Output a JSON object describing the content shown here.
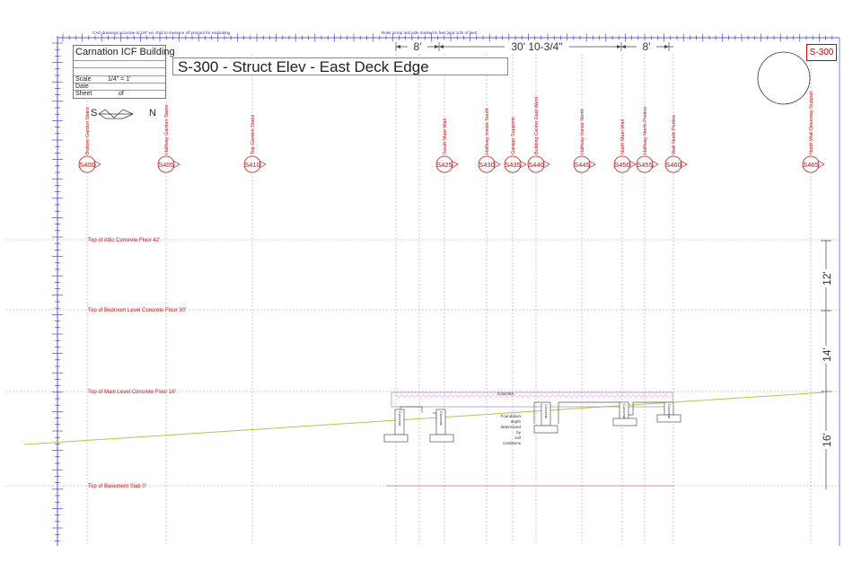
{
  "cad_notes": {
    "top_left": "CAD drawings accurate to 1/8\" ea. Grid to measure off printout for estimating",
    "top_center": "Ruler at top and side marked in feet (and 1/3s of feet)"
  },
  "title_block": {
    "building_name": "Carnation ICF Building",
    "scale_label": "Scale",
    "scale_value": "1/4\"  =  1'",
    "date_label": "Date",
    "sheet_label": "Sheet",
    "sheet_of": "of"
  },
  "drawing_title": "S-300 - Struct Elev - East Deck Edge",
  "sheet_id": "S-300",
  "compass": {
    "left": "S",
    "right": "N"
  },
  "dimensions": {
    "d1": "8'",
    "d2": "30' 10-3/4\"",
    "d3": "8'"
  },
  "elevation_dims": {
    "upper": "12'",
    "middle": "14'",
    "lower": "16'"
  },
  "section_markers": [
    {
      "id": "S400",
      "label": "Bottom Garden Stairs"
    },
    {
      "id": "S405",
      "label": "Halfway Garden Stairs"
    },
    {
      "id": "S410",
      "label": "Top Garden Stairs"
    },
    {
      "id": "S425",
      "label": "South Main Wall"
    },
    {
      "id": "S430",
      "label": "Halfway Inside South"
    },
    {
      "id": "S435",
      "label": "Garage Supports"
    },
    {
      "id": "S440",
      "label": "Building Center East West"
    },
    {
      "id": "S445",
      "label": "Halfway Inside North"
    },
    {
      "id": "S450",
      "label": "North Main Wall"
    },
    {
      "id": "S455",
      "label": "Halfway North Portico"
    },
    {
      "id": "S460",
      "label": "Wall North Portico"
    },
    {
      "id": "S465",
      "label": "North Wall Driveway Support"
    }
  ],
  "levels": [
    {
      "label": "Top of Attic Concrete Floor  42'"
    },
    {
      "label": "Top of Bedroom Level Concrete Floor  30'"
    },
    {
      "label": "Top of Main Level Concrete Floor  16'"
    },
    {
      "label": "Top of Basement Slab  0'"
    }
  ],
  "deck": {
    "slab_label": "Concrete",
    "column_label": "Concrete",
    "foundation_note": [
      "Foundation",
      "depth",
      "determined",
      "by",
      "soil",
      "conditions"
    ]
  },
  "colors": {
    "level_red": "#cc1111",
    "grid": "#8c8ccc",
    "ruler_blue": "#2b2bd6",
    "ground_line": "#aacc44",
    "deck_outline": "#cc88cc"
  }
}
